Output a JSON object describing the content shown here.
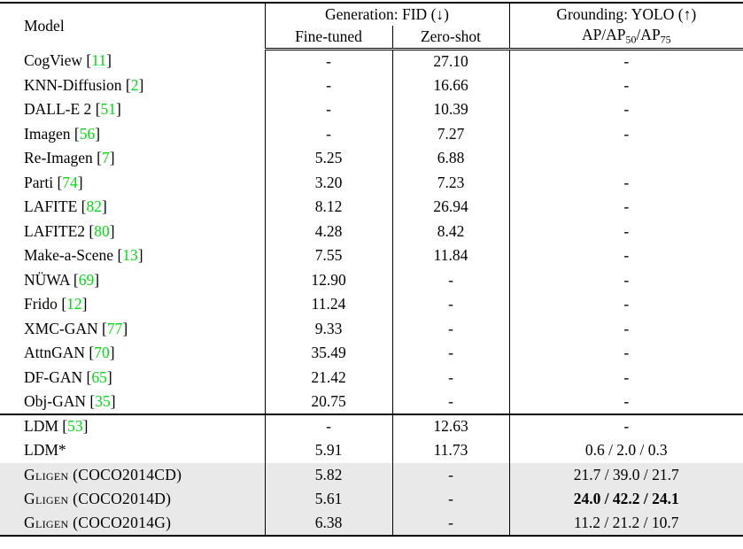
{
  "table": {
    "header": {
      "model_label": "Model",
      "generation_label": "Generation: FID (↓)",
      "grounding_label": "Grounding: YOLO (↑)",
      "fine_tuned_label": "Fine-tuned",
      "zero_shot_label": "Zero-shot",
      "ap_header": {
        "p1": "AP/AP",
        "s1": "50",
        "p2": "/AP",
        "s2": "75"
      }
    },
    "colors": {
      "citation_green": "#00dd10",
      "highlight_gray": "#e9e9e9"
    },
    "sections": [
      {
        "rows": [
          {
            "model": "CogView",
            "cite": "11",
            "smallcaps": false,
            "fine_tuned": "-",
            "zero_shot": "27.10",
            "grounding": "-",
            "highlight": false,
            "grounding_bold": false
          },
          {
            "model": "KNN-Diffusion",
            "cite": "2",
            "smallcaps": false,
            "fine_tuned": "-",
            "zero_shot": "16.66",
            "grounding": "-",
            "highlight": false,
            "grounding_bold": false
          },
          {
            "model": "DALL-E 2",
            "cite": "51",
            "smallcaps": false,
            "fine_tuned": "-",
            "zero_shot": "10.39",
            "grounding": "-",
            "highlight": false,
            "grounding_bold": false
          },
          {
            "model": "Imagen",
            "cite": "56",
            "smallcaps": false,
            "fine_tuned": "-",
            "zero_shot": "7.27",
            "grounding": "-",
            "highlight": false,
            "grounding_bold": false
          },
          {
            "model": "Re-Imagen",
            "cite": "7",
            "smallcaps": false,
            "fine_tuned": "5.25",
            "zero_shot": "6.88",
            "grounding": "",
            "highlight": false,
            "grounding_bold": false
          },
          {
            "model": "Parti",
            "cite": "74",
            "smallcaps": false,
            "fine_tuned": "3.20",
            "zero_shot": "7.23",
            "grounding": "-",
            "highlight": false,
            "grounding_bold": false
          },
          {
            "model": "LAFITE",
            "cite": "82",
            "smallcaps": false,
            "fine_tuned": "8.12",
            "zero_shot": "26.94",
            "grounding": "-",
            "highlight": false,
            "grounding_bold": false
          },
          {
            "model": "LAFITE2",
            "cite": "80",
            "smallcaps": false,
            "fine_tuned": "4.28",
            "zero_shot": "8.42",
            "grounding": "-",
            "highlight": false,
            "grounding_bold": false
          },
          {
            "model": "Make-a-Scene",
            "cite": "13",
            "smallcaps": false,
            "fine_tuned": "7.55",
            "zero_shot": "11.84",
            "grounding": "-",
            "highlight": false,
            "grounding_bold": false
          },
          {
            "model": "NÜWA",
            "cite": "69",
            "smallcaps": false,
            "fine_tuned": "12.90",
            "zero_shot": "-",
            "grounding": "-",
            "highlight": false,
            "grounding_bold": false
          },
          {
            "model": "Frido",
            "cite": "12",
            "smallcaps": false,
            "fine_tuned": "11.24",
            "zero_shot": "-",
            "grounding": "-",
            "highlight": false,
            "grounding_bold": false
          },
          {
            "model": "XMC-GAN",
            "cite": "77",
            "smallcaps": false,
            "fine_tuned": "9.33",
            "zero_shot": "-",
            "grounding": "-",
            "highlight": false,
            "grounding_bold": false
          },
          {
            "model": "AttnGAN",
            "cite": "70",
            "smallcaps": false,
            "fine_tuned": "35.49",
            "zero_shot": "-",
            "grounding": "-",
            "highlight": false,
            "grounding_bold": false
          },
          {
            "model": "DF-GAN",
            "cite": "65",
            "smallcaps": false,
            "fine_tuned": "21.42",
            "zero_shot": "-",
            "grounding": "-",
            "highlight": false,
            "grounding_bold": false
          },
          {
            "model": "Obj-GAN",
            "cite": "35",
            "smallcaps": false,
            "fine_tuned": "20.75",
            "zero_shot": "-",
            "grounding": "-",
            "highlight": false,
            "grounding_bold": false
          }
        ]
      },
      {
        "rows": [
          {
            "model": "LDM",
            "cite": "53",
            "smallcaps": false,
            "fine_tuned": "-",
            "zero_shot": "12.63",
            "grounding": "-",
            "highlight": false,
            "grounding_bold": false
          },
          {
            "model": "LDM*",
            "cite": "",
            "smallcaps": false,
            "fine_tuned": "5.91",
            "zero_shot": "11.73",
            "grounding": "0.6 / 2.0 / 0.3",
            "highlight": false,
            "grounding_bold": false
          },
          {
            "model": "Gligen (COCO2014CD)",
            "cite": "",
            "smallcaps": true,
            "fine_tuned": "5.82",
            "zero_shot": "-",
            "grounding": "21.7 / 39.0 / 21.7",
            "highlight": true,
            "grounding_bold": false
          },
          {
            "model": "Gligen (COCO2014D)",
            "cite": "",
            "smallcaps": true,
            "fine_tuned": "5.61",
            "zero_shot": "-",
            "grounding": "24.0 / 42.2 / 24.1",
            "highlight": true,
            "grounding_bold": true
          },
          {
            "model": "Gligen (COCO2014G)",
            "cite": "",
            "smallcaps": true,
            "fine_tuned": "6.38",
            "zero_shot": "-",
            "grounding": "11.2 / 21.2 / 10.7",
            "highlight": true,
            "grounding_bold": false
          }
        ]
      }
    ]
  }
}
